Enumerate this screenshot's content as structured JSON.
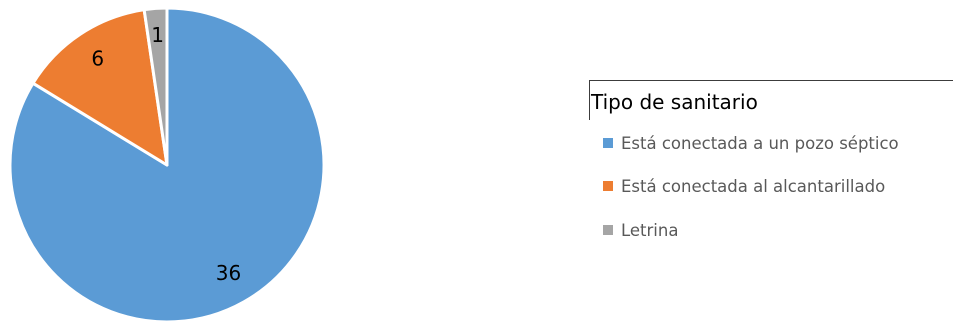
{
  "chart_data": {
    "type": "pie",
    "title": "",
    "legend_title": "Tipo de sanitario",
    "legend_position": "right",
    "slices": [
      {
        "label": "Está conectada a un pozo séptico",
        "value": 36,
        "color": "#5B9BD5"
      },
      {
        "label": "Está conectada al alcantarillado",
        "value": 6,
        "color": "#ED7D31"
      },
      {
        "label": "Letrina",
        "value": 1,
        "color": "#A5A5A5"
      }
    ]
  }
}
